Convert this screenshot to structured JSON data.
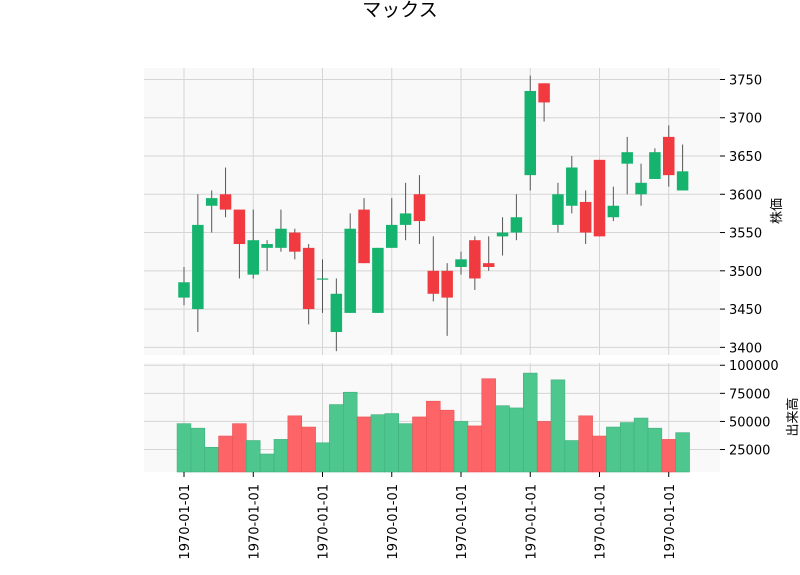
{
  "chart_data": {
    "type": "candlestick",
    "title": "マックス",
    "panels": [
      {
        "name": "price",
        "ylabel": "株価",
        "ylim": [
          3390,
          3765
        ],
        "yticks": [
          3400,
          3450,
          3500,
          3550,
          3600,
          3650,
          3700,
          3750
        ]
      },
      {
        "name": "volume",
        "ylabel": "出来高",
        "ylim": [
          5000,
          102000
        ],
        "yticks": [
          25000,
          50000,
          75000,
          100000
        ]
      }
    ],
    "xtick_labels": [
      "1970-01-01",
      "1970-01-01",
      "1970-01-01",
      "1970-01-01",
      "1970-01-01",
      "1970-01-01",
      "1970-01-01",
      "1970-01-01"
    ],
    "xticks": [
      0,
      5,
      10,
      15,
      20,
      25,
      30,
      35
    ],
    "colors": {
      "up": "#16b36e",
      "down": "#f03a3f",
      "vol_up": "#4ec78e",
      "vol_down": "#fd6467",
      "grid": "#d5d5d5",
      "panel_bg": "#f9f9f9"
    },
    "candles": [
      {
        "open": 3465,
        "high": 3505,
        "low": 3455,
        "close": 3485,
        "volume": 48000
      },
      {
        "open": 3450,
        "high": 3600,
        "low": 3420,
        "close": 3560,
        "volume": 44000
      },
      {
        "open": 3585,
        "high": 3605,
        "low": 3550,
        "close": 3595,
        "volume": 27000
      },
      {
        "open": 3600,
        "high": 3635,
        "low": 3570,
        "close": 3580,
        "volume": 37000
      },
      {
        "open": 3580,
        "high": 3580,
        "low": 3490,
        "close": 3535,
        "volume": 48000
      },
      {
        "open": 3495,
        "high": 3580,
        "low": 3490,
        "close": 3540,
        "volume": 33000
      },
      {
        "open": 3530,
        "high": 3540,
        "low": 3500,
        "close": 3535,
        "volume": 21000
      },
      {
        "open": 3530,
        "high": 3580,
        "low": 3525,
        "close": 3555,
        "volume": 34000
      },
      {
        "open": 3550,
        "high": 3555,
        "low": 3515,
        "close": 3525,
        "volume": 55000
      },
      {
        "open": 3530,
        "high": 3535,
        "low": 3430,
        "close": 3450,
        "volume": 45000
      },
      {
        "open": 3490,
        "high": 3515,
        "low": 3445,
        "close": 3490,
        "volume": 31000
      },
      {
        "open": 3420,
        "high": 3490,
        "low": 3395,
        "close": 3470,
        "volume": 65000
      },
      {
        "open": 3445,
        "high": 3575,
        "low": 3445,
        "close": 3555,
        "volume": 76000
      },
      {
        "open": 3580,
        "high": 3595,
        "low": 3510,
        "close": 3510,
        "volume": 54000
      },
      {
        "open": 3445,
        "high": 3530,
        "low": 3445,
        "close": 3530,
        "volume": 56000
      },
      {
        "open": 3530,
        "high": 3595,
        "low": 3530,
        "close": 3560,
        "volume": 57000
      },
      {
        "open": 3560,
        "high": 3615,
        "low": 3540,
        "close": 3575,
        "volume": 48000
      },
      {
        "open": 3600,
        "high": 3625,
        "low": 3535,
        "close": 3565,
        "volume": 54000
      },
      {
        "open": 3500,
        "high": 3545,
        "low": 3460,
        "close": 3470,
        "volume": 68000
      },
      {
        "open": 3500,
        "high": 3510,
        "low": 3415,
        "close": 3465,
        "volume": 60000
      },
      {
        "open": 3505,
        "high": 3525,
        "low": 3495,
        "close": 3515,
        "volume": 50000
      },
      {
        "open": 3540,
        "high": 3545,
        "low": 3475,
        "close": 3490,
        "volume": 46000
      },
      {
        "open": 3510,
        "high": 3545,
        "low": 3500,
        "close": 3505,
        "volume": 88000
      },
      {
        "open": 3545,
        "high": 3570,
        "low": 3520,
        "close": 3550,
        "volume": 64000
      },
      {
        "open": 3550,
        "high": 3600,
        "low": 3540,
        "close": 3570,
        "volume": 62000
      },
      {
        "open": 3625,
        "high": 3755,
        "low": 3605,
        "close": 3735,
        "volume": 93000
      },
      {
        "open": 3745,
        "high": 3745,
        "low": 3695,
        "close": 3720,
        "volume": 50000
      },
      {
        "open": 3560,
        "high": 3615,
        "low": 3550,
        "close": 3600,
        "volume": 87000
      },
      {
        "open": 3585,
        "high": 3650,
        "low": 3575,
        "close": 3635,
        "volume": 33000
      },
      {
        "open": 3590,
        "high": 3605,
        "low": 3535,
        "close": 3550,
        "volume": 55000
      },
      {
        "open": 3645,
        "high": 3645,
        "low": 3545,
        "close": 3545,
        "volume": 37000
      },
      {
        "open": 3570,
        "high": 3610,
        "low": 3565,
        "close": 3585,
        "volume": 45000
      },
      {
        "open": 3640,
        "high": 3675,
        "low": 3600,
        "close": 3655,
        "volume": 49000
      },
      {
        "open": 3600,
        "high": 3640,
        "low": 3585,
        "close": 3615,
        "volume": 53000
      },
      {
        "open": 3620,
        "high": 3660,
        "low": 3620,
        "close": 3655,
        "volume": 44000
      },
      {
        "open": 3675,
        "high": 3690,
        "low": 3610,
        "close": 3625,
        "volume": 34000
      },
      {
        "open": 3605,
        "high": 3665,
        "low": 3605,
        "close": 3630,
        "volume": 40000
      }
    ]
  }
}
